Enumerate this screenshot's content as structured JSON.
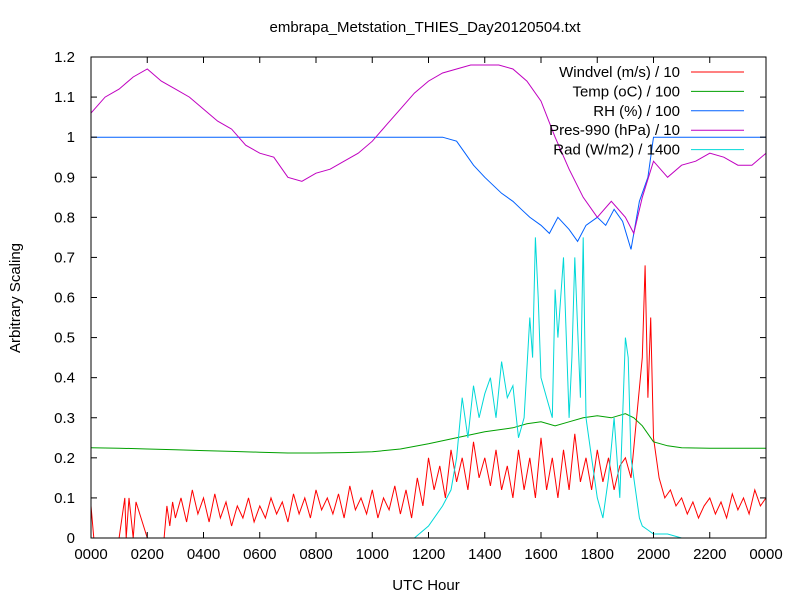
{
  "chart_data": {
    "type": "line",
    "title": "embrapa_Metstation_THIES_Day20120504.txt",
    "xlabel": "UTC Hour",
    "ylabel": "Arbitrary Scaling",
    "xlim": [
      0,
      24
    ],
    "ylim": [
      0,
      1.2
    ],
    "grid": false,
    "legend_position": "top-right",
    "x_tick_labels": [
      "0000",
      "0200",
      "0400",
      "0600",
      "0800",
      "1000",
      "1200",
      "1400",
      "1600",
      "1800",
      "2000",
      "2200",
      "0000"
    ],
    "y_tick_labels": [
      "0",
      "0.1",
      "0.2",
      "0.3",
      "0.4",
      "0.5",
      "0.6",
      "0.7",
      "0.8",
      "0.9",
      "1",
      "1.1",
      "1.2"
    ],
    "series": [
      {
        "name": "Windvel (m/s) / 10",
        "color": "#ff0000",
        "x": [
          0,
          0.1,
          0.2,
          0.8,
          1.0,
          1.2,
          1.25,
          1.35,
          1.5,
          1.6,
          2.0,
          2.6,
          2.7,
          2.8,
          2.9,
          3.0,
          3.2,
          3.4,
          3.6,
          3.8,
          4.0,
          4.2,
          4.4,
          4.6,
          4.8,
          5.0,
          5.2,
          5.4,
          5.6,
          5.8,
          6.0,
          6.2,
          6.4,
          6.6,
          6.8,
          7.0,
          7.2,
          7.4,
          7.6,
          7.8,
          8.0,
          8.2,
          8.4,
          8.6,
          8.8,
          9.0,
          9.2,
          9.4,
          9.6,
          9.8,
          10.0,
          10.2,
          10.4,
          10.6,
          10.8,
          11.0,
          11.2,
          11.4,
          11.6,
          11.8,
          12.0,
          12.2,
          12.4,
          12.6,
          12.8,
          13.0,
          13.2,
          13.4,
          13.6,
          13.8,
          14.0,
          14.2,
          14.4,
          14.6,
          14.8,
          15.0,
          15.2,
          15.4,
          15.6,
          15.8,
          16.0,
          16.2,
          16.4,
          16.6,
          16.8,
          17.0,
          17.2,
          17.4,
          17.6,
          17.8,
          18.0,
          18.2,
          18.4,
          18.6,
          18.8,
          19.0,
          19.2,
          19.4,
          19.6,
          19.7,
          19.8,
          19.9,
          20.0,
          20.2,
          20.4,
          20.6,
          20.8,
          21.0,
          21.2,
          21.4,
          21.6,
          21.8,
          22.0,
          22.2,
          22.4,
          22.6,
          22.8,
          23.0,
          23.2,
          23.4,
          23.6,
          23.8,
          24.0
        ],
        "values": [
          0.08,
          0,
          0,
          0,
          0,
          0.1,
          0,
          0.1,
          0,
          0.09,
          0,
          0,
          0.08,
          0.03,
          0.09,
          0.05,
          0.1,
          0.04,
          0.12,
          0.06,
          0.1,
          0.04,
          0.11,
          0.05,
          0.09,
          0.03,
          0.08,
          0.05,
          0.1,
          0.04,
          0.08,
          0.05,
          0.1,
          0.06,
          0.09,
          0.04,
          0.11,
          0.06,
          0.1,
          0.05,
          0.12,
          0.07,
          0.1,
          0.06,
          0.11,
          0.05,
          0.13,
          0.07,
          0.1,
          0.06,
          0.12,
          0.05,
          0.1,
          0.07,
          0.13,
          0.06,
          0.12,
          0.05,
          0.15,
          0.08,
          0.2,
          0.12,
          0.18,
          0.1,
          0.22,
          0.14,
          0.2,
          0.12,
          0.24,
          0.15,
          0.2,
          0.13,
          0.22,
          0.12,
          0.18,
          0.1,
          0.22,
          0.12,
          0.2,
          0.1,
          0.25,
          0.12,
          0.2,
          0.1,
          0.22,
          0.12,
          0.26,
          0.14,
          0.2,
          0.12,
          0.22,
          0.14,
          0.2,
          0.12,
          0.18,
          0.2,
          0.15,
          0.3,
          0.45,
          0.68,
          0.35,
          0.55,
          0.25,
          0.15,
          0.1,
          0.12,
          0.08,
          0.1,
          0.06,
          0.09,
          0.05,
          0.08,
          0.1,
          0.06,
          0.09,
          0.05,
          0.11,
          0.07,
          0.1,
          0.06,
          0.12,
          0.08,
          0.1
        ]
      },
      {
        "name": "Temp (oC) / 100",
        "color": "#00a000",
        "x": [
          0,
          1,
          2,
          3,
          4,
          5,
          6,
          7,
          8,
          9,
          10,
          11,
          12,
          13,
          14,
          15,
          15.5,
          16,
          16.5,
          17,
          17.5,
          18,
          18.5,
          19,
          19.3,
          19.6,
          20,
          20.5,
          21,
          22,
          23,
          24
        ],
        "values": [
          0.225,
          0.224,
          0.222,
          0.22,
          0.218,
          0.216,
          0.214,
          0.212,
          0.212,
          0.213,
          0.215,
          0.222,
          0.235,
          0.25,
          0.265,
          0.275,
          0.285,
          0.29,
          0.28,
          0.29,
          0.3,
          0.305,
          0.3,
          0.31,
          0.3,
          0.28,
          0.24,
          0.23,
          0.225,
          0.224,
          0.224,
          0.224
        ]
      },
      {
        "name": "RH (%) / 100",
        "color": "#0060ff",
        "x": [
          0,
          12.5,
          13,
          13.3,
          13.6,
          14,
          14.3,
          14.6,
          15,
          15.3,
          15.6,
          16,
          16.3,
          16.6,
          17,
          17.3,
          17.6,
          18,
          18.3,
          18.6,
          18.9,
          19.2,
          19.5,
          19.8,
          20,
          24
        ],
        "values": [
          1,
          1,
          0.99,
          0.96,
          0.93,
          0.9,
          0.88,
          0.86,
          0.84,
          0.82,
          0.8,
          0.78,
          0.76,
          0.8,
          0.77,
          0.74,
          0.78,
          0.8,
          0.78,
          0.82,
          0.79,
          0.72,
          0.84,
          0.9,
          1,
          1
        ]
      },
      {
        "name": "Pres-990 (hPa) / 10",
        "color": "#c000c0",
        "x": [
          0,
          0.5,
          1,
          1.5,
          2,
          2.5,
          3,
          3.5,
          4,
          4.5,
          5,
          5.5,
          6,
          6.5,
          7,
          7.5,
          8,
          8.5,
          9,
          9.5,
          10,
          10.5,
          11,
          11.5,
          12,
          12.5,
          13,
          13.5,
          14,
          14.5,
          15,
          15.5,
          16,
          16.5,
          17,
          17.5,
          18,
          18.5,
          19,
          19.3,
          19.6,
          20,
          20.5,
          21,
          21.5,
          22,
          22.5,
          23,
          23.5,
          24
        ],
        "values": [
          1.06,
          1.1,
          1.12,
          1.15,
          1.17,
          1.14,
          1.12,
          1.1,
          1.07,
          1.04,
          1.02,
          0.98,
          0.96,
          0.95,
          0.9,
          0.89,
          0.91,
          0.92,
          0.94,
          0.96,
          0.99,
          1.03,
          1.07,
          1.11,
          1.14,
          1.16,
          1.17,
          1.18,
          1.18,
          1.18,
          1.17,
          1.14,
          1.09,
          1.0,
          0.92,
          0.85,
          0.8,
          0.84,
          0.8,
          0.76,
          0.85,
          0.94,
          0.9,
          0.93,
          0.94,
          0.96,
          0.95,
          0.93,
          0.93,
          0.96
        ]
      },
      {
        "name": "Rad (W/m2) / 1400",
        "color": "#00d8d8",
        "x": [
          0,
          11.5,
          12.0,
          12.5,
          12.8,
          13.0,
          13.2,
          13.4,
          13.6,
          13.8,
          14.0,
          14.2,
          14.4,
          14.6,
          14.8,
          15.0,
          15.2,
          15.4,
          15.6,
          15.7,
          15.8,
          15.9,
          16.0,
          16.2,
          16.4,
          16.5,
          16.6,
          16.8,
          17.0,
          17.1,
          17.2,
          17.4,
          17.5,
          17.6,
          17.8,
          18.0,
          18.2,
          18.4,
          18.6,
          18.8,
          19.0,
          19.1,
          19.2,
          19.4,
          19.5,
          19.6,
          19.8,
          20.0,
          20.5,
          21,
          24
        ],
        "values": [
          0,
          0,
          0.03,
          0.08,
          0.12,
          0.2,
          0.35,
          0.25,
          0.38,
          0.3,
          0.36,
          0.4,
          0.3,
          0.44,
          0.35,
          0.38,
          0.25,
          0.3,
          0.55,
          0.45,
          0.75,
          0.6,
          0.4,
          0.35,
          0.3,
          0.62,
          0.5,
          0.7,
          0.3,
          0.45,
          0.7,
          0.35,
          0.75,
          0.3,
          0.2,
          0.1,
          0.05,
          0.15,
          0.3,
          0.1,
          0.5,
          0.45,
          0.2,
          0.1,
          0.05,
          0.03,
          0.02,
          0.01,
          0.01,
          0,
          0
        ]
      }
    ]
  }
}
